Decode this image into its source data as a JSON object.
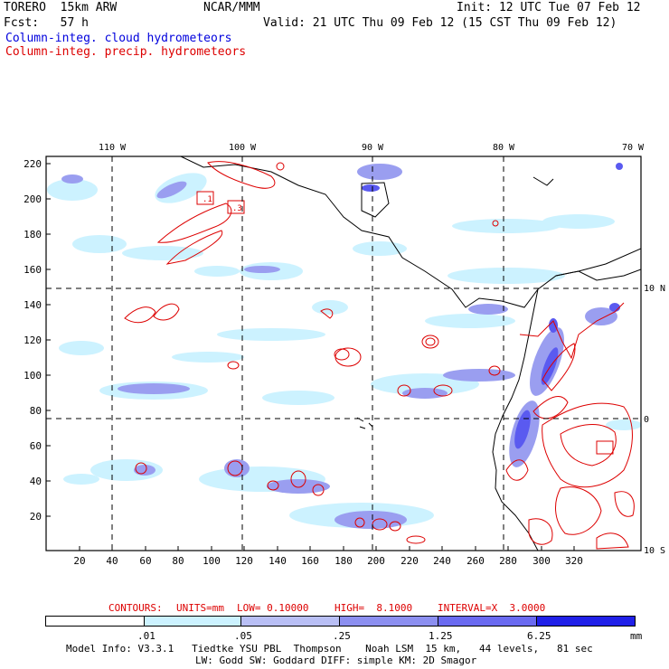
{
  "header": {
    "title_left": "TORERO  15km ARW",
    "center": "NCAR/MMM",
    "init": "Init: 12 UTC Tue 07 Feb 12",
    "fcst": "Fcst:   57 h",
    "valid": "Valid: 21 UTC Thu 09 Feb 12 (15 CST Thu 09 Feb 12)",
    "field1": "Column-integ. cloud hydrometeors",
    "field2": "Column-integ. precip. hydrometeors"
  },
  "map": {
    "lon_labels": [
      "110 W",
      "100 W",
      "90 W",
      "80 W",
      "70 W"
    ],
    "lat_labels": [
      "10 N",
      "0",
      "10 S"
    ],
    "y_ticks": [
      "220",
      "200",
      "180",
      "160",
      "140",
      "120",
      "100",
      "80",
      "60",
      "40",
      "20"
    ],
    "x_ticks": [
      "20",
      "40",
      "60",
      "80",
      "100",
      "120",
      "140",
      "160",
      "180",
      "200",
      "220",
      "240",
      "260",
      "280",
      "300",
      "320"
    ],
    "contour_labels": [
      ".1",
      ".3"
    ],
    "colors": {
      "land_outline": "#000000",
      "precip_contour": "#dd0000",
      "cloud_light": "#ccf2ff",
      "cloud_mid": "#9a9ef0",
      "cloud_dark": "#5a5af0"
    }
  },
  "contour_info": {
    "contours": "CONTOURS:",
    "units": "UNITS=mm",
    "low": "LOW= 0.10000",
    "high": "HIGH=  8.1000",
    "interval": "INTERVAL=X  3.0000"
  },
  "colorbar": {
    "labels": [
      ".01",
      ".05",
      ".25",
      "1.25",
      "6.25"
    ],
    "unit": "mm",
    "colors": [
      "#ffffff",
      "#ccf2ff",
      "#b9bff5",
      "#8c8ff0",
      "#6a6af0",
      "#2020e8"
    ]
  },
  "footer": {
    "line1": "Model Info: V3.3.1   Tiedtke YSU PBL  Thompson    Noah LSM  15 km,   44 levels,   81 sec",
    "line2": "LW: Godd SW: Goddard DIFF: simple KM: 2D Smagor"
  }
}
